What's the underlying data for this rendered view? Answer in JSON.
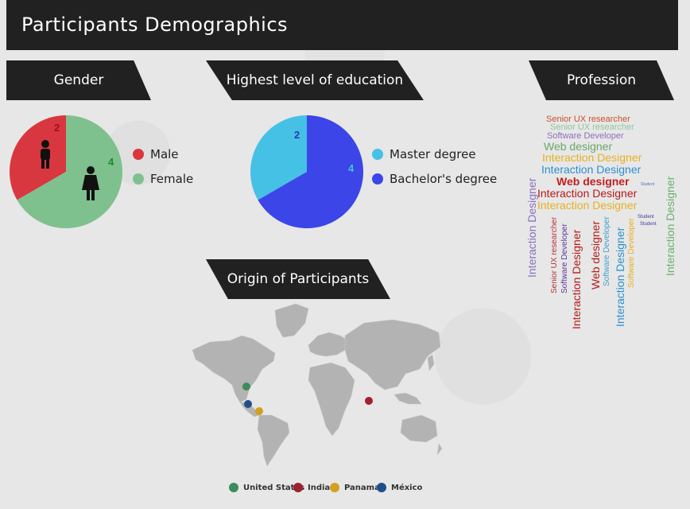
{
  "header": {
    "title": "Participants Demographics"
  },
  "sections": {
    "gender": "Gender",
    "education": "Highest level of education",
    "profession": "Profession",
    "origin": "Origin of Participants"
  },
  "chart_data": [
    {
      "type": "pie",
      "title": "Gender",
      "slices": [
        {
          "label": "Male",
          "value": 2,
          "color": "#d9373f"
        },
        {
          "label": "Female",
          "value": 4,
          "color": "#7fc08f"
        }
      ]
    },
    {
      "type": "pie",
      "title": "Highest level of education",
      "slices": [
        {
          "label": "Master degree",
          "value": 2,
          "color": "#45c1e6"
        },
        {
          "label": "Bachelor's degree",
          "value": 4,
          "color": "#3b45e8"
        }
      ]
    }
  ],
  "gender_slice_labels": {
    "male_value": "2",
    "female_value": "4"
  },
  "education_slice_labels": {
    "master_value": "2",
    "bachelor_value": "4"
  },
  "legends": {
    "gender": [
      {
        "label": "Male",
        "color": "#d9373f"
      },
      {
        "label": "Female",
        "color": "#7fc08f"
      }
    ],
    "education": [
      {
        "label": "Master degree",
        "color": "#45c1e6"
      },
      {
        "label": "Bachelor's degree",
        "color": "#3b45e8"
      }
    ]
  },
  "word_cloud": {
    "h": [
      {
        "text": "Senior UX researcher",
        "color": "#c8502a"
      },
      {
        "text": "Senior UX researcher",
        "color": "#8fc89a"
      },
      {
        "text": "Software Developer",
        "color": "#8a6fbf"
      },
      {
        "text": "Web designer",
        "color": "#6aa86a"
      },
      {
        "text": "Interaction Designer",
        "color": "#e6b020"
      },
      {
        "text": "Interaction Designer",
        "color": "#2b8fd0"
      },
      {
        "text": "Web designer",
        "color": "#c02020"
      },
      {
        "text": "Interaction Designer",
        "color": "#b81818"
      },
      {
        "text": "Interaction Designer",
        "color": "#e6b020"
      },
      {
        "text": "Student",
        "color": "#5c6bc0"
      },
      {
        "text": "Student",
        "color": "#3a3a9a"
      },
      {
        "text": "Student",
        "color": "#3a3a9a"
      }
    ],
    "v": [
      {
        "text": "Interaction Designer",
        "color": "#8a6fbf"
      },
      {
        "text": "Senior UX researcher",
        "color": "#b83030"
      },
      {
        "text": "Software Developer",
        "color": "#5a3a9a"
      },
      {
        "text": "Interaction Designer",
        "color": "#b81818"
      },
      {
        "text": "Web designer",
        "color": "#b81818"
      },
      {
        "text": "Software Developer",
        "color": "#45a0d0"
      },
      {
        "text": "Interaction Designer",
        "color": "#2b8fd0"
      },
      {
        "text": "Software Developer",
        "color": "#e6b020"
      },
      {
        "text": "Interaction Designer",
        "color": "#6ab06a"
      }
    ]
  },
  "map": {
    "legend": [
      {
        "label": "United States",
        "color": "#3d8c5f"
      },
      {
        "label": "India",
        "color": "#a02030"
      },
      {
        "label": "Panama",
        "color": "#d4a020"
      },
      {
        "label": "México",
        "color": "#1f4f8a"
      }
    ]
  }
}
